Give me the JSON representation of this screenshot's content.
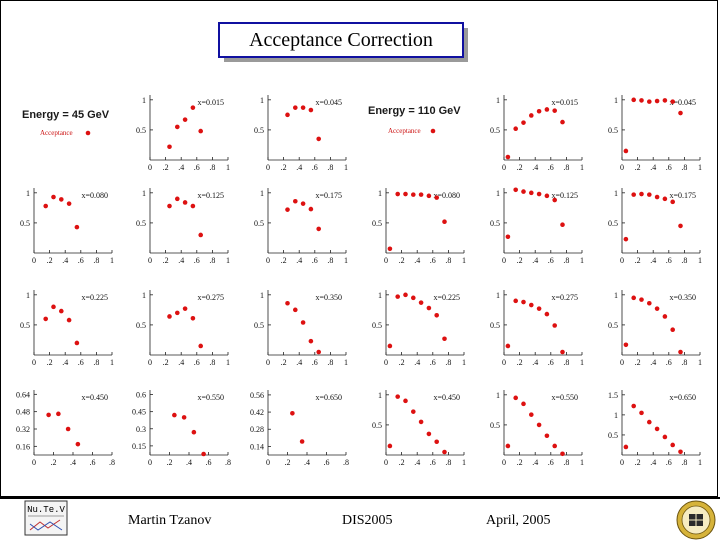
{
  "title": "Acceptance Correction",
  "footer": {
    "author": "Martin Tzanov",
    "conference": "DIS2005",
    "date": "April, 2005"
  },
  "logos": {
    "left": "Nu.Te.V",
    "right": "university-seal"
  },
  "colors": {
    "points": "#dd1111",
    "title_border": "#1010a0",
    "title_shadow": "#9a9a9a"
  },
  "legend": {
    "low": {
      "energy": "Energy = 45 GeV",
      "label": "Acceptance"
    },
    "high": {
      "energy": "Energy = 110 GeV",
      "label": "Acceptance"
    }
  },
  "chart_data": [
    {
      "type": "scatter",
      "energy": "45 GeV",
      "label": "x=0.015",
      "xlim": [
        0,
        1
      ],
      "yticks": [
        0.5,
        1
      ],
      "x": [
        0.25,
        0.35,
        0.45,
        0.55,
        0.65
      ],
      "y": [
        0.22,
        0.55,
        0.67,
        0.87,
        0.48
      ]
    },
    {
      "type": "scatter",
      "energy": "45 GeV",
      "label": "x=0.045",
      "xlim": [
        0,
        1
      ],
      "yticks": [
        0.5,
        1
      ],
      "x": [
        0.25,
        0.35,
        0.45,
        0.55,
        0.65
      ],
      "y": [
        0.75,
        0.87,
        0.87,
        0.83,
        0.35
      ]
    },
    {
      "type": "scatter",
      "energy": "110 GeV",
      "label": "x=0.015",
      "xlim": [
        0,
        1
      ],
      "yticks": [
        0.5,
        1
      ],
      "x": [
        0.05,
        0.15,
        0.25,
        0.35,
        0.45,
        0.55,
        0.65,
        0.75
      ],
      "y": [
        0.05,
        0.52,
        0.62,
        0.74,
        0.81,
        0.84,
        0.82,
        0.63
      ]
    },
    {
      "type": "scatter",
      "energy": "110 GeV",
      "label": "x=0.045",
      "xlim": [
        0,
        1
      ],
      "yticks": [
        0.5,
        1
      ],
      "x": [
        0.05,
        0.15,
        0.25,
        0.35,
        0.45,
        0.55,
        0.65,
        0.75
      ],
      "y": [
        0.15,
        1.0,
        0.99,
        0.97,
        0.98,
        0.99,
        0.97,
        0.78
      ]
    },
    {
      "type": "scatter",
      "energy": "45 GeV",
      "label": "x=0.080",
      "xlim": [
        0,
        1
      ],
      "yticks": [
        0.5,
        1
      ],
      "x": [
        0.15,
        0.25,
        0.35,
        0.45,
        0.55
      ],
      "y": [
        0.78,
        0.93,
        0.89,
        0.82,
        0.43
      ]
    },
    {
      "type": "scatter",
      "energy": "45 GeV",
      "label": "x=0.125",
      "xlim": [
        0,
        1
      ],
      "yticks": [
        0.5,
        1
      ],
      "x": [
        0.25,
        0.35,
        0.45,
        0.55,
        0.65
      ],
      "y": [
        0.78,
        0.9,
        0.84,
        0.78,
        0.3
      ]
    },
    {
      "type": "scatter",
      "energy": "45 GeV",
      "label": "x=0.175",
      "xlim": [
        0,
        1
      ],
      "yticks": [
        0.5,
        1
      ],
      "x": [
        0.25,
        0.35,
        0.45,
        0.55,
        0.65
      ],
      "y": [
        0.72,
        0.86,
        0.82,
        0.73,
        0.4
      ]
    },
    {
      "type": "scatter",
      "energy": "110 GeV",
      "label": "x=0.080",
      "xlim": [
        0,
        1
      ],
      "yticks": [
        0.5,
        1
      ],
      "x": [
        0.05,
        0.15,
        0.25,
        0.35,
        0.45,
        0.55,
        0.65,
        0.75
      ],
      "y": [
        0.07,
        0.98,
        0.98,
        0.97,
        0.97,
        0.95,
        0.92,
        0.52
      ]
    },
    {
      "type": "scatter",
      "energy": "110 GeV",
      "label": "x=0.125",
      "xlim": [
        0,
        1
      ],
      "yticks": [
        0.5,
        1
      ],
      "x": [
        0.05,
        0.15,
        0.25,
        0.35,
        0.45,
        0.55,
        0.65,
        0.75
      ],
      "y": [
        0.27,
        1.05,
        1.02,
        1.0,
        0.98,
        0.95,
        0.88,
        0.47
      ]
    },
    {
      "type": "scatter",
      "energy": "110 GeV",
      "label": "x=0.175",
      "xlim": [
        0,
        1
      ],
      "yticks": [
        0.5,
        1
      ],
      "x": [
        0.05,
        0.15,
        0.25,
        0.35,
        0.45,
        0.55,
        0.65,
        0.75
      ],
      "y": [
        0.23,
        0.97,
        0.98,
        0.97,
        0.93,
        0.9,
        0.85,
        0.45
      ]
    },
    {
      "type": "scatter",
      "energy": "45 GeV",
      "label": "x=0.225",
      "xlim": [
        0,
        1
      ],
      "yticks": [
        0.5,
        1
      ],
      "x": [
        0.15,
        0.25,
        0.35,
        0.45,
        0.55
      ],
      "y": [
        0.6,
        0.8,
        0.73,
        0.58,
        0.2
      ]
    },
    {
      "type": "scatter",
      "energy": "45 GeV",
      "label": "x=0.275",
      "xlim": [
        0,
        1
      ],
      "yticks": [
        0.5,
        1
      ],
      "x": [
        0.25,
        0.35,
        0.45,
        0.55,
        0.65
      ],
      "y": [
        0.64,
        0.7,
        0.77,
        0.61,
        0.15
      ]
    },
    {
      "type": "scatter",
      "energy": "45 GeV",
      "label": "x=0.350",
      "xlim": [
        0,
        1
      ],
      "yticks": [
        0.5,
        1
      ],
      "x": [
        0.25,
        0.35,
        0.45,
        0.55,
        0.65
      ],
      "y": [
        0.86,
        0.75,
        0.54,
        0.23,
        0.05
      ]
    },
    {
      "type": "scatter",
      "energy": "110 GeV",
      "label": "x=0.225",
      "xlim": [
        0,
        1
      ],
      "yticks": [
        0.5,
        1
      ],
      "x": [
        0.05,
        0.15,
        0.25,
        0.35,
        0.45,
        0.55,
        0.65,
        0.75
      ],
      "y": [
        0.15,
        0.97,
        1.0,
        0.95,
        0.87,
        0.78,
        0.66,
        0.27
      ]
    },
    {
      "type": "scatter",
      "energy": "110 GeV",
      "label": "x=0.275",
      "xlim": [
        0,
        1
      ],
      "yticks": [
        0.5,
        1
      ],
      "x": [
        0.05,
        0.15,
        0.25,
        0.35,
        0.45,
        0.55,
        0.65,
        0.75
      ],
      "y": [
        0.15,
        0.9,
        0.88,
        0.83,
        0.77,
        0.68,
        0.49,
        0.05
      ]
    },
    {
      "type": "scatter",
      "energy": "110 GeV",
      "label": "x=0.350",
      "xlim": [
        0,
        1
      ],
      "yticks": [
        0.5,
        1
      ],
      "x": [
        0.05,
        0.15,
        0.25,
        0.35,
        0.45,
        0.55,
        0.65,
        0.75
      ],
      "y": [
        0.17,
        0.95,
        0.92,
        0.86,
        0.77,
        0.64,
        0.42,
        0.05
      ]
    },
    {
      "type": "scatter",
      "energy": "45 GeV",
      "label": "x=0.450",
      "xlim": [
        0,
        0.8
      ],
      "xticks": [
        0,
        0.2,
        0.4,
        0.6,
        0.8
      ],
      "yticks": [
        0.16,
        0.32,
        0.48,
        0.64
      ],
      "ylim": [
        0.08,
        0.68
      ],
      "x": [
        0.15,
        0.25,
        0.35,
        0.45
      ],
      "y": [
        0.45,
        0.46,
        0.32,
        0.18
      ]
    },
    {
      "type": "scatter",
      "energy": "45 GeV",
      "label": "x=0.550",
      "xlim": [
        0,
        0.8
      ],
      "xticks": [
        0,
        0.2,
        0.4,
        0.6,
        0.8
      ],
      "yticks": [
        0.15,
        0.3,
        0.45,
        0.6
      ],
      "ylim": [
        0.07,
        0.64
      ],
      "x": [
        0.25,
        0.35,
        0.45,
        0.55
      ],
      "y": [
        0.42,
        0.4,
        0.27,
        0.07
      ]
    },
    {
      "type": "scatter",
      "energy": "45 GeV",
      "label": "x=0.650",
      "xlim": [
        0,
        0.8
      ],
      "xticks": [
        0,
        0.2,
        0.4,
        0.6,
        0.8
      ],
      "yticks": [
        0.14,
        0.28,
        0.42,
        0.56
      ],
      "ylim": [
        0.07,
        0.6
      ],
      "x": [
        0.25,
        0.35
      ],
      "y": [
        0.41,
        0.18
      ]
    },
    {
      "type": "scatter",
      "energy": "110 GeV",
      "label": "x=0.450",
      "xlim": [
        0,
        1
      ],
      "yticks": [
        0.5,
        1
      ],
      "x": [
        0.05,
        0.15,
        0.25,
        0.35,
        0.45,
        0.55,
        0.65,
        0.75
      ],
      "y": [
        0.15,
        0.97,
        0.9,
        0.72,
        0.55,
        0.35,
        0.22,
        0.05
      ]
    },
    {
      "type": "scatter",
      "energy": "110 GeV",
      "label": "x=0.550",
      "xlim": [
        0,
        1
      ],
      "yticks": [
        0.5,
        1
      ],
      "x": [
        0.05,
        0.15,
        0.25,
        0.35,
        0.45,
        0.55,
        0.65,
        0.75
      ],
      "y": [
        0.15,
        0.95,
        0.85,
        0.67,
        0.5,
        0.32,
        0.15,
        0.02
      ]
    },
    {
      "type": "scatter",
      "energy": "110 GeV",
      "label": "x=0.650",
      "xlim": [
        0,
        1
      ],
      "yticks": [
        0.5,
        1,
        1.5
      ],
      "x": [
        0.05,
        0.15,
        0.25,
        0.35,
        0.45,
        0.55,
        0.65,
        0.75
      ],
      "y": [
        0.2,
        1.22,
        1.05,
        0.82,
        0.65,
        0.45,
        0.25,
        0.08
      ]
    }
  ]
}
